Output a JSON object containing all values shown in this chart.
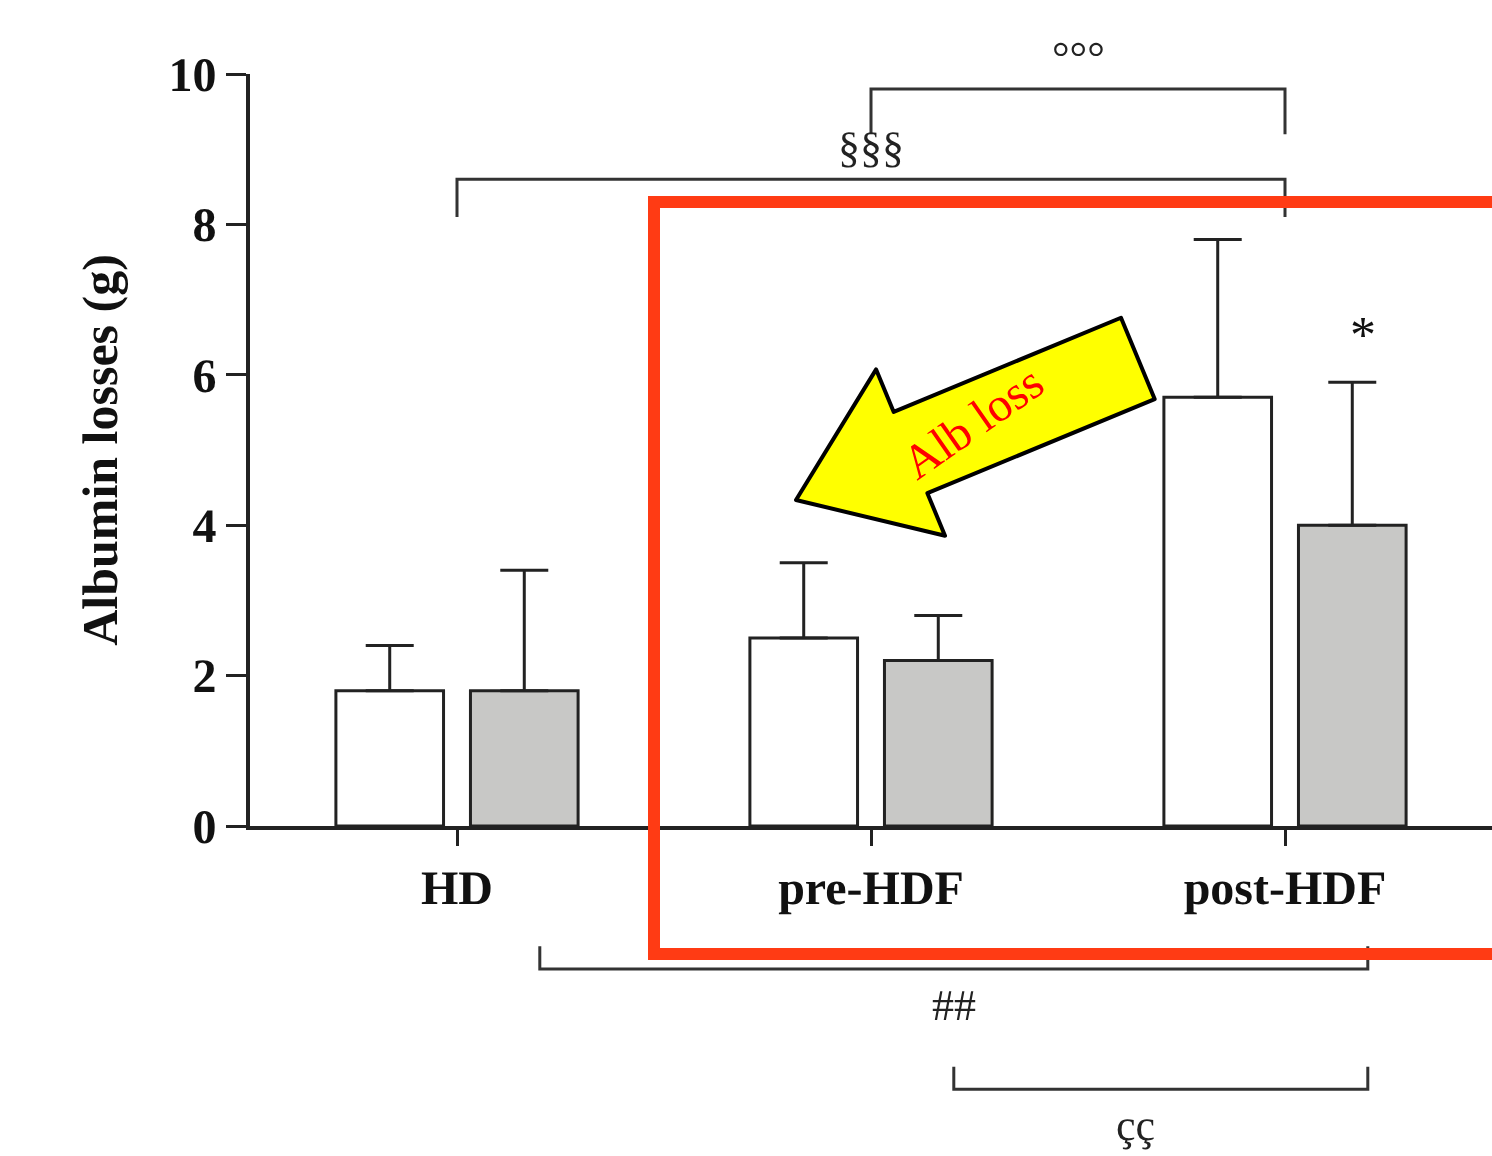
{
  "chart_data": {
    "type": "bar",
    "ylabel": "Albumin losses (g)",
    "categories": [
      "HD",
      "pre-HDF",
      "post-HDF"
    ],
    "series": [
      {
        "color": "#ffffff",
        "values": [
          1.8,
          2.5,
          5.7
        ],
        "errors": [
          [
            1.8,
            2.4
          ],
          [
            2.5,
            3.5
          ],
          [
            5.7,
            7.8
          ]
        ]
      },
      {
        "color": "#c8c8c6",
        "values": [
          1.8,
          2.2,
          4.0
        ],
        "errors": [
          [
            1.8,
            3.4
          ],
          [
            2.2,
            2.8
          ],
          [
            4.0,
            5.9
          ]
        ]
      }
    ],
    "ylim": [
      0,
      10
    ],
    "yticks": [
      0,
      2,
      4,
      6,
      8,
      10
    ],
    "grid": false,
    "annotations": [
      "°°°",
      "§§§",
      "*",
      "##",
      "çç",
      "Alb loss"
    ]
  }
}
